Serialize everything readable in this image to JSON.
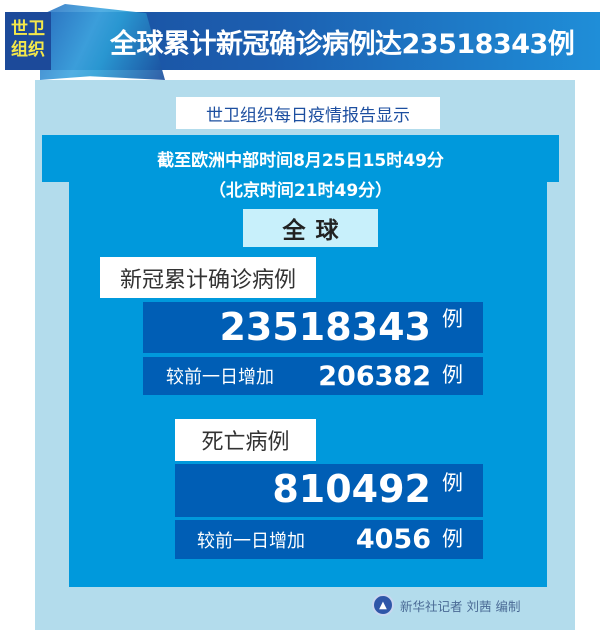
{
  "header": {
    "tag_line1": "世卫",
    "tag_line2": "组织",
    "title": "全球累计新冠确诊病例达23518343例"
  },
  "subtitle": "世卫组织每日疫情报告显示",
  "time": {
    "line1": "截至欧洲中部时间8月25日15时49分",
    "line2": "（北京时间21时49分）"
  },
  "scope": "全球",
  "cases": {
    "label": "新冠累计确诊病例",
    "total": "23518343",
    "unit": "例",
    "delta_label": "较前一日增加",
    "delta": "206382",
    "delta_unit": "例"
  },
  "deaths": {
    "label": "死亡病例",
    "total": "810492",
    "unit": "例",
    "delta_label": "较前一日增加",
    "delta": "4056",
    "delta_unit": "例"
  },
  "footer": {
    "credit": "新华社记者 刘茜 编制",
    "logo_icon": "xinhua-logo-icon"
  },
  "colors": {
    "header": "#1c5fb0",
    "panel": "#b3dcec",
    "body": "#0099dc",
    "box": "#005eb5",
    "tag_text": "#f4e84a"
  }
}
